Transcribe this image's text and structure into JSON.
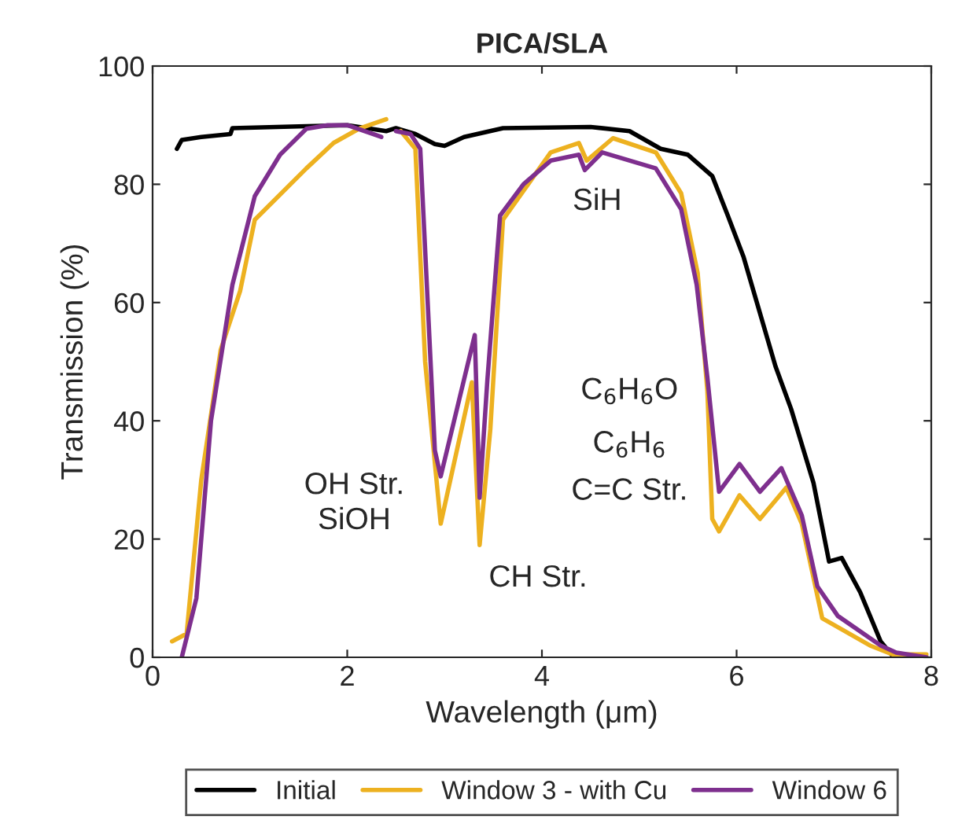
{
  "chart_data": {
    "type": "line",
    "title": "PICA/SLA",
    "xlabel": "Wavelength (μm)",
    "ylabel": "Transmission (%)",
    "xlim": [
      0,
      8
    ],
    "ylim": [
      0,
      100
    ],
    "xticks": [
      0,
      2,
      4,
      6,
      8
    ],
    "yticks": [
      0,
      20,
      40,
      60,
      80,
      100
    ],
    "grid": false,
    "legend": "bottom",
    "series": [
      {
        "name": "Initial",
        "color": "#000000",
        "x": [
          0.25,
          0.3,
          0.5,
          0.8,
          0.82,
          1.5,
          2.0,
          2.4,
          2.5,
          2.7,
          2.9,
          3.0,
          3.2,
          3.6,
          4.5,
          4.9,
          5.22,
          5.5,
          5.75,
          5.91,
          6.07,
          6.4,
          6.56,
          6.79,
          6.95,
          7.08,
          7.27,
          7.48,
          7.6,
          7.95
        ],
        "values": [
          86,
          87.5,
          88,
          88.5,
          89.5,
          89.8,
          90,
          89,
          89.5,
          88.5,
          86.8,
          86.5,
          88,
          89.5,
          89.7,
          89,
          86,
          85,
          81.4,
          74.7,
          67.8,
          49.2,
          42,
          29.5,
          16.2,
          16.8,
          11,
          2.7,
          0.3,
          0
        ]
      },
      {
        "name": "Window 3 - with Cu",
        "color": "#edb120",
        "x": [
          0.2,
          0.35,
          0.5,
          0.7,
          0.9,
          1.05,
          1.58,
          1.86,
          2.12,
          2.4,
          2.45,
          2.55,
          2.7,
          2.8,
          2.96,
          3.28,
          3.36,
          3.47,
          3.6,
          4.09,
          4.38,
          4.46,
          4.73,
          5.17,
          5.43,
          5.6,
          5.7,
          5.75,
          5.82,
          6.03,
          6.24,
          6.51,
          6.67,
          6.88,
          7.37,
          7.6,
          7.95
        ],
        "values": [
          2.7,
          4,
          30,
          52,
          62,
          74,
          82.7,
          87,
          89.4,
          91,
          null,
          89,
          86,
          50,
          22.6,
          46.5,
          19,
          38.6,
          74,
          85.4,
          87,
          84,
          87.8,
          85.4,
          78.5,
          65,
          45,
          23.4,
          21.3,
          27.4,
          23.4,
          28.7,
          22.6,
          6.6,
          2,
          0.5,
          0.5
        ]
      },
      {
        "name": "Window 6",
        "color": "#7e2f8e",
        "x": [
          0.3,
          0.45,
          0.6,
          0.82,
          1.05,
          1.31,
          1.58,
          1.8,
          2.0,
          2.35,
          2.45,
          2.5,
          2.65,
          2.75,
          2.9,
          2.96,
          3.31,
          3.36,
          3.44,
          3.57,
          3.81,
          4.09,
          4.38,
          4.44,
          4.62,
          5.17,
          5.43,
          5.59,
          5.7,
          5.82,
          6.03,
          6.24,
          6.46,
          6.67,
          6.83,
          7.04,
          7.48,
          7.64,
          7.95
        ],
        "values": [
          0,
          10,
          40,
          63,
          78,
          85,
          89.4,
          90,
          90,
          88,
          null,
          89,
          88.5,
          86,
          35,
          30.6,
          54.5,
          27,
          47,
          74.7,
          80,
          84,
          85,
          82.4,
          85.4,
          82.7,
          75.8,
          63,
          47.3,
          28,
          32.7,
          28,
          32,
          24,
          12,
          7,
          2,
          0.8,
          0
        ]
      }
    ],
    "annotations": [
      "OH Str.\nSiOH",
      "CH Str.",
      "SiH",
      "C$_{6}$H$_{6}$O",
      "C$_{6}$H$_{6}$",
      "C=C Str."
    ]
  }
}
